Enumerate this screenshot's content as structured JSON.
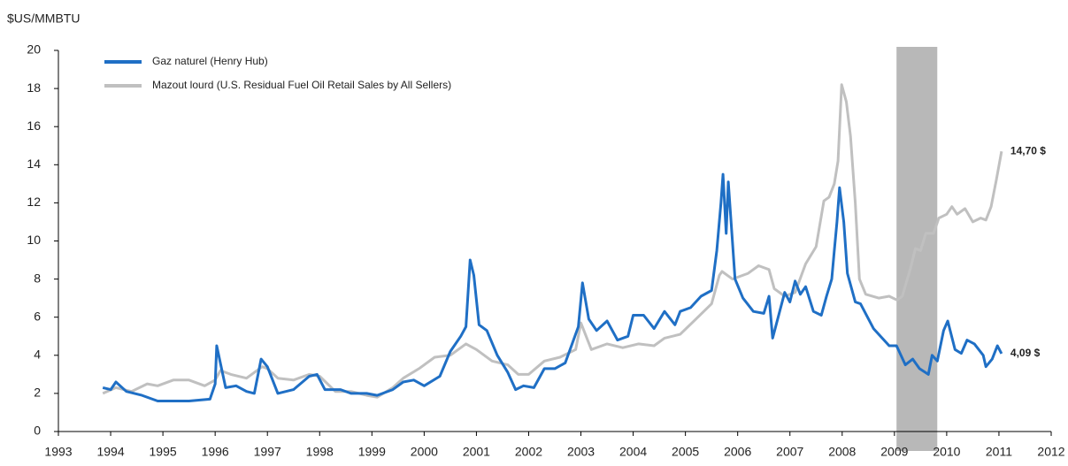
{
  "chart_data": {
    "type": "line",
    "y_axis_label": "$US/MMBTU",
    "xlim": [
      1993,
      2012
    ],
    "xticks": [
      1993,
      1994,
      1995,
      1996,
      1997,
      1998,
      1999,
      2000,
      2001,
      2002,
      2003,
      2004,
      2005,
      2006,
      2007,
      2008,
      2009,
      2010,
      2011,
      2012
    ],
    "ylim": [
      0,
      20
    ],
    "yticks": [
      0,
      2,
      4,
      6,
      8,
      10,
      12,
      14,
      16,
      18,
      20
    ],
    "grid": false,
    "legend": "upper left",
    "highlight_x": [
      2009.04,
      2009.82
    ],
    "highlight_color": "#b8b8b8",
    "series": [
      {
        "name": "Gaz naturel (Henry Hub)",
        "color": "#1f6fc5",
        "x": [
          1993.85,
          1994.0,
          1994.1,
          1994.3,
          1994.6,
          1994.9,
          1995.2,
          1995.5,
          1995.9,
          1996.0,
          1996.03,
          1996.2,
          1996.4,
          1996.6,
          1996.75,
          1996.88,
          1997.0,
          1997.2,
          1997.5,
          1997.8,
          1997.95,
          1998.1,
          1998.4,
          1998.6,
          1998.9,
          1999.1,
          1999.4,
          1999.6,
          1999.8,
          2000.0,
          2000.3,
          2000.5,
          2000.7,
          2000.8,
          2000.88,
          2000.95,
          2001.05,
          2001.2,
          2001.4,
          2001.6,
          2001.75,
          2001.9,
          2002.1,
          2002.3,
          2002.5,
          2002.7,
          2002.95,
          2003.03,
          2003.15,
          2003.3,
          2003.5,
          2003.7,
          2003.9,
          2004.0,
          2004.2,
          2004.4,
          2004.6,
          2004.8,
          2004.9,
          2005.1,
          2005.3,
          2005.5,
          2005.6,
          2005.68,
          2005.72,
          2005.78,
          2005.82,
          2005.95,
          2006.1,
          2006.3,
          2006.5,
          2006.6,
          2006.67,
          2006.9,
          2007.0,
          2007.1,
          2007.2,
          2007.3,
          2007.45,
          2007.6,
          2007.7,
          2007.8,
          2007.85,
          2007.9,
          2007.95,
          2008.03,
          2008.1,
          2008.25,
          2008.35,
          2008.6,
          2008.9,
          2009.04,
          2009.21,
          2009.35,
          2009.48,
          2009.65,
          2009.72,
          2009.82,
          2009.94,
          2010.02,
          2010.16,
          2010.28,
          2010.39,
          2010.53,
          2010.7,
          2010.75,
          2010.87,
          2010.97,
          2011.05
        ],
        "values": [
          2.3,
          2.2,
          2.6,
          2.1,
          1.9,
          1.6,
          1.6,
          1.6,
          1.7,
          2.5,
          4.5,
          2.3,
          2.4,
          2.1,
          2.0,
          3.8,
          3.4,
          2.0,
          2.2,
          2.9,
          3.0,
          2.2,
          2.2,
          2.0,
          2.0,
          1.9,
          2.2,
          2.6,
          2.7,
          2.4,
          2.9,
          4.2,
          5.0,
          5.5,
          9.0,
          8.2,
          5.6,
          5.3,
          4.0,
          3.1,
          2.2,
          2.4,
          2.3,
          3.3,
          3.3,
          3.6,
          5.5,
          7.8,
          5.9,
          5.3,
          5.8,
          4.8,
          5.0,
          6.1,
          6.1,
          5.4,
          6.3,
          5.6,
          6.3,
          6.5,
          7.1,
          7.4,
          9.5,
          12.0,
          13.5,
          10.4,
          13.1,
          8.0,
          7.0,
          6.3,
          6.2,
          7.1,
          4.9,
          7.3,
          6.8,
          7.9,
          7.2,
          7.6,
          6.3,
          6.1,
          7.1,
          8.0,
          9.5,
          11.0,
          12.8,
          11.0,
          8.3,
          6.8,
          6.7,
          5.4,
          4.5,
          4.5,
          3.5,
          3.8,
          3.3,
          3.0,
          4.0,
          3.7,
          5.3,
          5.8,
          4.3,
          4.1,
          4.8,
          4.6,
          4.0,
          3.4,
          3.8,
          4.5,
          4.09
        ]
      },
      {
        "name": "Mazout lourd (U.S. Residual Fuel Oil Retail Sales by All Sellers)",
        "color": "#c0c0c0",
        "x": [
          1993.85,
          1994.1,
          1994.4,
          1994.7,
          1994.9,
          1995.2,
          1995.5,
          1995.8,
          1996.0,
          1996.1,
          1996.3,
          1996.6,
          1996.9,
          1997.0,
          1997.2,
          1997.5,
          1997.8,
          1998.0,
          1998.3,
          1998.6,
          1998.9,
          1999.1,
          1999.4,
          1999.6,
          1999.9,
          2000.2,
          2000.5,
          2000.8,
          2001.0,
          2001.3,
          2001.6,
          2001.8,
          2002.0,
          2002.3,
          2002.6,
          2002.9,
          2003.0,
          2003.2,
          2003.5,
          2003.8,
          2004.1,
          2004.4,
          2004.6,
          2004.9,
          2005.2,
          2005.5,
          2005.65,
          2005.7,
          2005.9,
          2006.2,
          2006.4,
          2006.6,
          2006.7,
          2006.9,
          2007.1,
          2007.3,
          2007.5,
          2007.65,
          2007.75,
          2007.85,
          2007.92,
          2007.99,
          2008.08,
          2008.16,
          2008.25,
          2008.33,
          2008.45,
          2008.7,
          2008.9,
          2009.05,
          2009.15,
          2009.3,
          2009.4,
          2009.5,
          2009.6,
          2009.75,
          2009.85,
          2010.0,
          2010.1,
          2010.2,
          2010.35,
          2010.5,
          2010.65,
          2010.75,
          2010.85,
          2010.95,
          2011.05
        ],
        "values": [
          2.0,
          2.3,
          2.1,
          2.5,
          2.4,
          2.7,
          2.7,
          2.4,
          2.7,
          3.2,
          3.0,
          2.8,
          3.4,
          3.3,
          2.8,
          2.7,
          3.0,
          2.9,
          2.1,
          2.1,
          1.9,
          1.8,
          2.3,
          2.8,
          3.3,
          3.9,
          4.0,
          4.6,
          4.3,
          3.7,
          3.5,
          3.0,
          3.0,
          3.7,
          3.9,
          4.3,
          5.7,
          4.3,
          4.6,
          4.4,
          4.6,
          4.5,
          4.9,
          5.1,
          5.9,
          6.7,
          8.2,
          8.4,
          8.0,
          8.3,
          8.7,
          8.5,
          7.5,
          7.1,
          7.3,
          8.8,
          9.7,
          12.1,
          12.3,
          13.0,
          14.2,
          18.2,
          17.3,
          15.5,
          12.0,
          8.0,
          7.2,
          7.0,
          7.1,
          6.9,
          7.1,
          8.5,
          9.6,
          9.5,
          10.4,
          10.4,
          11.2,
          11.4,
          11.8,
          11.4,
          11.7,
          11.0,
          11.2,
          11.1,
          11.8,
          13.2,
          14.7
        ]
      }
    ],
    "annotations": [
      {
        "text": "14,70 $",
        "x": 2011.05,
        "y": 14.7
      },
      {
        "text": "4,09 $",
        "x": 2011.05,
        "y": 4.09
      }
    ]
  }
}
